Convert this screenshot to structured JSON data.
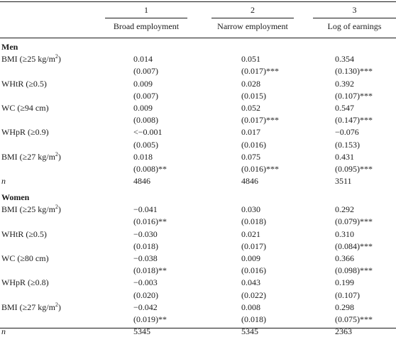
{
  "columns": [
    {
      "number": "1",
      "label": "Broad employment"
    },
    {
      "number": "2",
      "label": "Narrow employment"
    },
    {
      "number": "3",
      "label": "Log of earnings"
    }
  ],
  "sections": [
    {
      "label": "Men",
      "rows": [
        {
          "label": "BMI (≥25 kg/m",
          "sup": "2",
          "label_end": ")",
          "coef": [
            "0.014",
            "0.051",
            "0.354"
          ],
          "se": [
            "(0.007)",
            "(0.017)***",
            "(0.130)***"
          ]
        },
        {
          "label": "WHtR (≥0.5)",
          "coef": [
            "0.009",
            "0.028",
            "0.392"
          ],
          "se": [
            "(0.007)",
            "(0.015)",
            "(0.107)***"
          ]
        },
        {
          "label": "WC (≥94 cm)",
          "coef": [
            "0.009",
            "0.052",
            "0.547"
          ],
          "se": [
            "(0.008)",
            "(0.017)***",
            "(0.147)***"
          ]
        },
        {
          "label": "WHpR (≥0.9)",
          "coef": [
            "<−0.001",
            "0.017",
            "−0.076"
          ],
          "se": [
            "(0.005)",
            "(0.016)",
            "(0.153)"
          ]
        },
        {
          "label": "BMI (≥27 kg/m",
          "sup": "2",
          "label_end": ")",
          "coef": [
            "0.018",
            "0.075",
            "0.431"
          ],
          "se": [
            "(0.008)**",
            "(0.016)***",
            "(0.095)***"
          ]
        }
      ],
      "n_label": "n",
      "n": [
        "4846",
        "4846",
        "3511"
      ]
    },
    {
      "label": "Women",
      "rows": [
        {
          "label": "BMI (≥25 kg/m",
          "sup": "2",
          "label_end": ")",
          "coef": [
            "−0.041",
            "0.030",
            "0.292"
          ],
          "se": [
            "(0.016)**",
            "(0.018)",
            "(0.079)***"
          ]
        },
        {
          "label": "WHtR (≥0.5)",
          "coef": [
            "−0.030",
            "0.021",
            "0.310"
          ],
          "se": [
            "(0.018)",
            "(0.017)",
            "(0.084)***"
          ]
        },
        {
          "label": "WC (≥80 cm)",
          "coef": [
            "−0.038",
            "0.009",
            "0.366"
          ],
          "se": [
            "(0.018)**",
            "(0.016)",
            "(0.098)***"
          ]
        },
        {
          "label": "WHpR (≥0.8)",
          "coef": [
            "−0.003",
            "0.043",
            "0.199"
          ],
          "se": [
            "(0.020)",
            "(0.022)",
            "(0.107)"
          ]
        },
        {
          "label": "BMI (≥27 kg/m",
          "sup": "2",
          "label_end": ")",
          "coef": [
            "−0.042",
            "0.008",
            "0.298"
          ],
          "se": [
            "(0.019)**",
            "(0.018)",
            "(0.075)***"
          ]
        }
      ],
      "n_label": "n",
      "n": [
        "5345",
        "5345",
        "2363"
      ]
    }
  ]
}
